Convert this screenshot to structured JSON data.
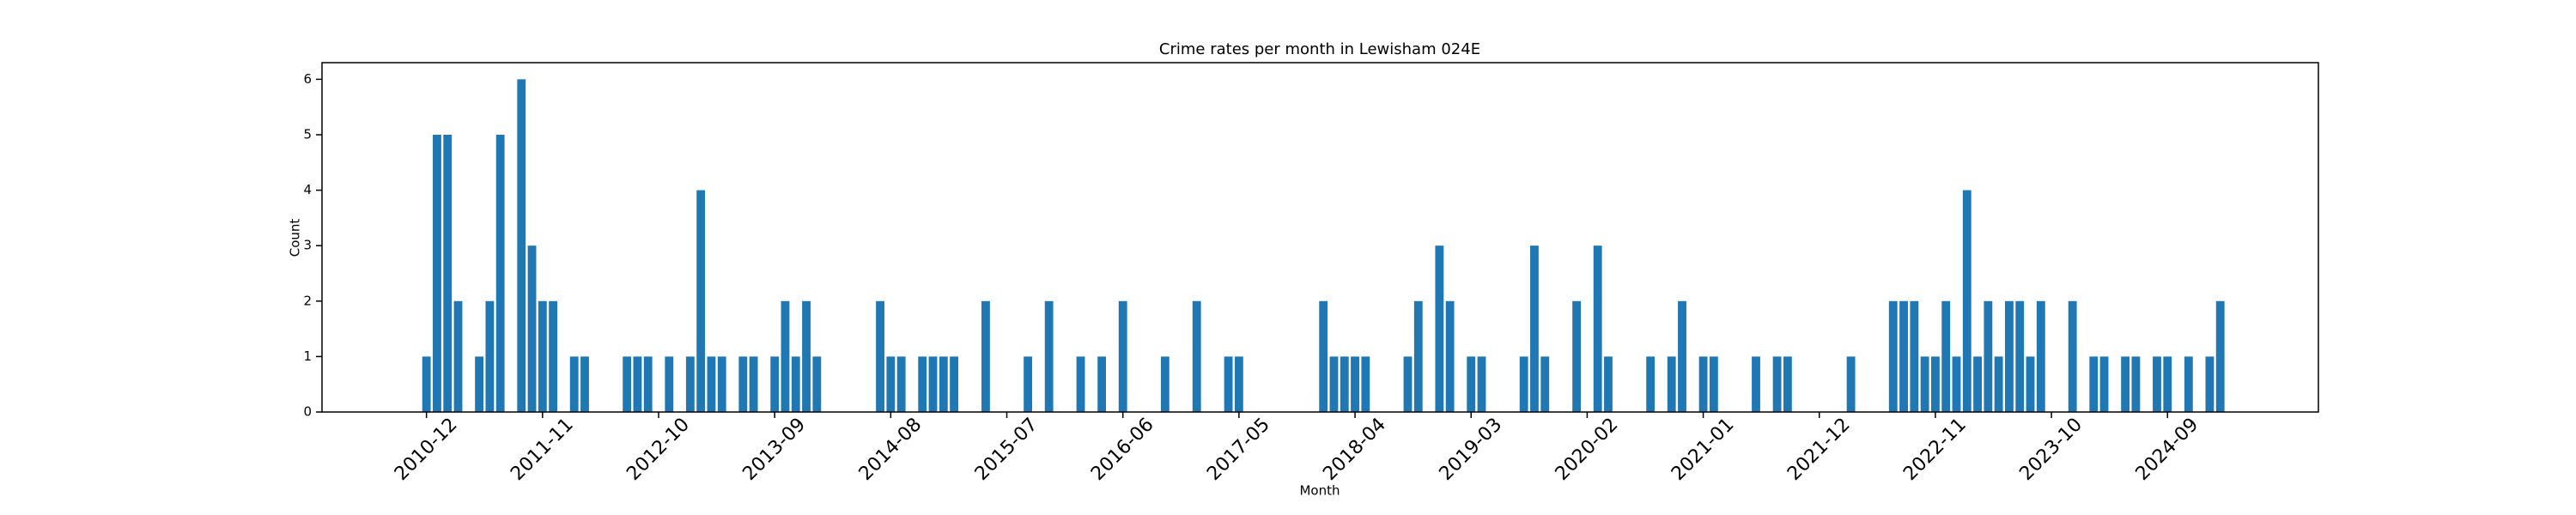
{
  "chart_data": {
    "type": "bar",
    "title": "Crime rates per month in Lewisham 024E",
    "x_label": "Month",
    "y_label": "Count",
    "color": "#1f77b4",
    "categories": [
      "2010-12",
      null,
      null,
      null,
      null,
      null,
      null,
      null,
      null,
      null,
      null,
      "2011-11",
      null,
      null,
      null,
      null,
      null,
      null,
      null,
      null,
      null,
      null,
      "2012-10",
      null,
      null,
      null,
      null,
      null,
      null,
      null,
      null,
      null,
      null,
      "2013-09",
      null,
      null,
      null,
      null,
      null,
      null,
      null,
      null,
      null,
      null,
      "2014-08",
      null,
      null,
      null,
      null,
      null,
      null,
      null,
      null,
      null,
      null,
      "2015-07",
      null,
      null,
      null,
      null,
      null,
      null,
      null,
      null,
      null,
      null,
      "2016-06",
      null,
      null,
      null,
      null,
      null,
      null,
      null,
      null,
      null,
      null,
      "2017-05",
      null,
      null,
      null,
      null,
      null,
      null,
      null,
      null,
      null,
      null,
      "2018-04",
      null,
      null,
      null,
      null,
      null,
      null,
      null,
      null,
      null,
      null,
      "2019-03",
      null,
      null,
      null,
      null,
      null,
      null,
      null,
      null,
      null,
      null,
      "2020-02",
      null,
      null,
      null,
      null,
      null,
      null,
      null,
      null,
      null,
      null,
      "2021-01",
      null,
      null,
      null,
      null,
      null,
      null,
      null,
      null,
      null,
      null,
      "2021-12",
      null,
      null,
      null,
      null,
      null,
      null,
      null,
      null,
      null,
      null,
      "2022-11",
      null,
      null,
      null,
      null,
      null,
      null,
      null,
      null,
      null,
      null,
      "2023-10",
      null,
      null,
      null,
      null,
      null,
      null,
      null,
      null,
      null,
      null,
      "2024-09",
      null,
      null,
      null,
      null,
      null
    ],
    "values": [
      1,
      5,
      5,
      2,
      null,
      1,
      2,
      5,
      null,
      6,
      3,
      2,
      2,
      null,
      1,
      1,
      null,
      null,
      null,
      1,
      1,
      1,
      null,
      1,
      null,
      1,
      4,
      1,
      1,
      null,
      1,
      1,
      null,
      1,
      2,
      1,
      2,
      1,
      null,
      null,
      null,
      null,
      null,
      2,
      1,
      1,
      null,
      1,
      1,
      1,
      1,
      null,
      null,
      2,
      null,
      null,
      null,
      1,
      null,
      2,
      null,
      null,
      1,
      null,
      1,
      null,
      2,
      null,
      null,
      null,
      1,
      null,
      null,
      2,
      null,
      null,
      1,
      1,
      null,
      null,
      null,
      null,
      null,
      null,
      null,
      2,
      1,
      1,
      1,
      1,
      null,
      null,
      null,
      1,
      2,
      null,
      3,
      2,
      null,
      1,
      1,
      null,
      null,
      null,
      1,
      3,
      1,
      null,
      null,
      2,
      null,
      3,
      1,
      null,
      null,
      null,
      1,
      null,
      1,
      2,
      null,
      1,
      1,
      null,
      null,
      null,
      1,
      null,
      1,
      1,
      null,
      null,
      null,
      null,
      null,
      1,
      null,
      null,
      null,
      2,
      2,
      2,
      1,
      1,
      2,
      1,
      4,
      1,
      2,
      1,
      2,
      2,
      1,
      2,
      null,
      null,
      2,
      null,
      1,
      1,
      null,
      1,
      1,
      null,
      1,
      1,
      null,
      1,
      null,
      1,
      2
    ],
    "ylim": [
      0,
      6.3
    ],
    "yticks": [
      0,
      1,
      2,
      3,
      4,
      5,
      6
    ],
    "grid": false
  }
}
